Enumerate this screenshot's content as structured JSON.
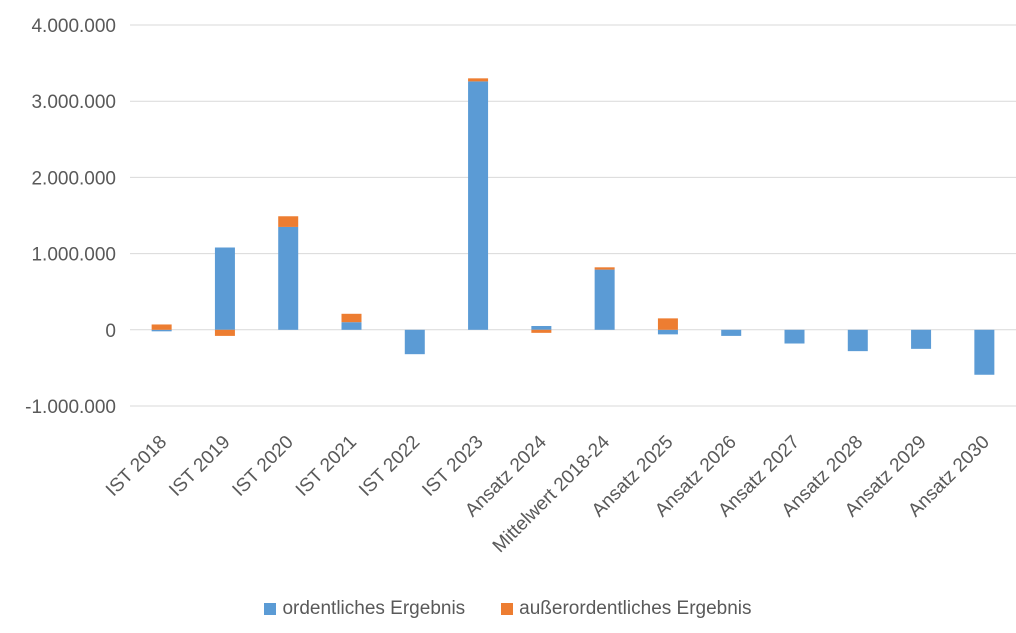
{
  "chart_data": {
    "type": "bar",
    "stacked": true,
    "categories": [
      "IST 2018",
      "IST 2019",
      "IST 2020",
      "IST 2021",
      "IST 2022",
      "IST 2023",
      "Ansatz 2024",
      "Mittelwert 2018-24",
      "Ansatz 2025",
      "Ansatz 2026",
      "Ansatz 2027",
      "Ansatz 2028",
      "Ansatz 2029",
      "Ansatz 2030"
    ],
    "series": [
      {
        "name": "ordentliches Ergebnis",
        "color": "#5B9BD5",
        "values": [
          -20000,
          1080000,
          1350000,
          100000,
          -320000,
          3260000,
          50000,
          790000,
          -60000,
          -80000,
          -180000,
          -280000,
          -250000,
          -590000
        ]
      },
      {
        "name": "außerordentliches Ergebnis",
        "color": "#ED7D31",
        "values": [
          70000,
          -80000,
          140000,
          110000,
          0,
          40000,
          -40000,
          30000,
          150000,
          0,
          0,
          0,
          0,
          0
        ]
      }
    ],
    "ylim": [
      -1000000,
      4000000
    ],
    "yticks": [
      -1000000,
      0,
      1000000,
      2000000,
      3000000,
      4000000
    ],
    "ytick_labels": [
      "-1.000.000",
      "0",
      "1.000.000",
      "2.000.000",
      "3.000.000",
      "4.000.000"
    ],
    "grid": true,
    "legend_position": "bottom"
  }
}
